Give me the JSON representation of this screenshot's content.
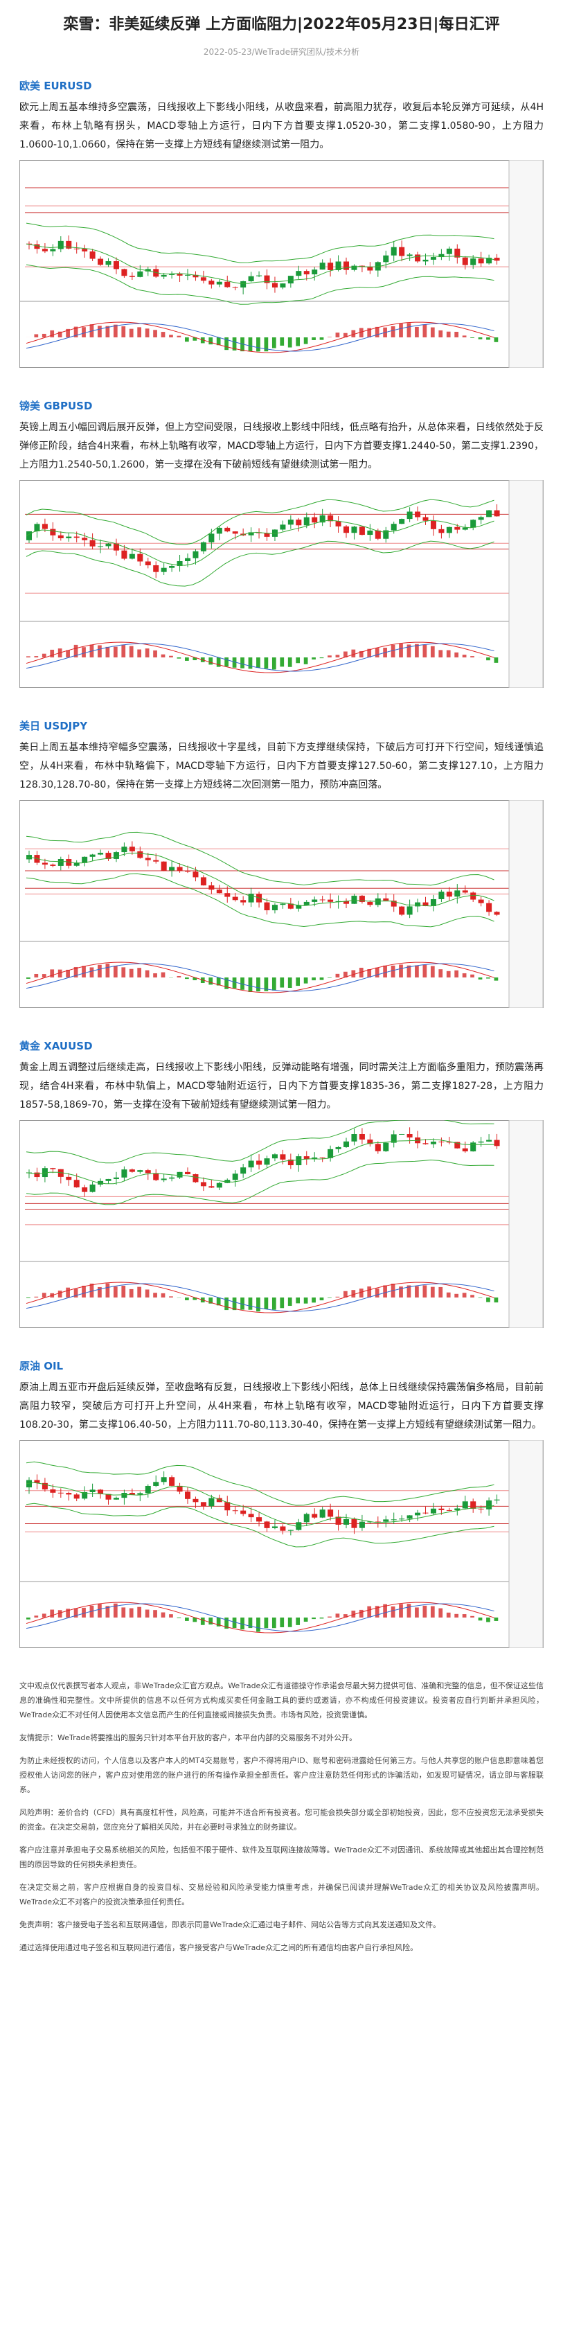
{
  "header": {
    "title": "栾雪：非美延续反弹 上方面临阻力|2022年05月23日|每日汇评",
    "meta": "2022-05-23/WeTrade研究团队/技术分析"
  },
  "sections": [
    {
      "heading": "欧美 EURUSD",
      "body": "欧元上周五基本维持多空震荡，日线报收上下影线小阳线，从收盘来看，前高阻力犹存，收复后本轮反弹方可延续，从4H来看，布林上轨略有拐头，MACD零轴上方运行，日内下方首要支撑1.0520-30，第二支撑1.0580-90，上方阻力1.0600-10,1.0660，保持在第一支撑上方短线有望继续测试第一阻力。"
    },
    {
      "heading": "镑美 GBPUSD",
      "body": "英镑上周五小幅回调后展开反弹，但上方空间受限，日线报收上影线中阳线，低点略有抬升，从总体来看，日线依然处于反弹修正阶段，结合4H来看，布林上轨略有收窄，MACD零轴上方运行，日内下方首要支撑1.2440-50，第二支撑1.2390，上方阻力1.2540-50,1.2600，第一支撑在没有下破前短线有望继续测试第一阻力。"
    },
    {
      "heading": "美日 USDJPY",
      "body": "美日上周五基本维持窄幅多空震荡，日线报收十字星线，目前下方支撑继续保持，下破后方可打开下行空间，短线谨慎追空，从4H来看，布林中轨略偏下，MACD零轴下方运行，日内下方首要支撑127.50-60，第二支撑127.10，上方阻力128.30,128.70-80，保持在第一支撑上方短线将二次回测第一阻力，预防冲高回落。"
    },
    {
      "heading": "黄金 XAUUSD",
      "body": "黄金上周五调整过后继续走高，日线报收上下影线小阳线，反弹动能略有增强，同时需关注上方面临多重阻力，预防震荡再现，结合4H来看，布林中轨偏上，MACD零轴附近运行，日内下方首要支撑1835-36，第二支撑1827-28，上方阻力1857-58,1869-70，第一支撑在没有下破前短线有望继续测试第一阻力。"
    },
    {
      "heading": "原油 OIL",
      "body": "原油上周五亚市开盘后延续反弹，至收盘略有反复，日线报收上下影线小阳线，总体上日线继续保持震荡偏多格局，目前前高阻力较窄，突破后方可打开上升空间，从4H来看，布林上轨略有收窄，MACD零轴附近运行，日内下方首要支撑108.20-30，第二支撑106.40-50，上方阻力111.70-80,113.30-40，保持在第一支撑上方短线有望继续测试第一阻力。"
    }
  ],
  "disclaimer": [
    "文中观点仅代表撰写者本人观点，非WeTrade众汇官方观点。WeTrade众汇有道德操守作承诺会尽最大努力提供可信、准确和完整的信息，但不保证这些信息的准确性和完整性。文中所提供的信息不以任何方式构成买卖任何金融工具的要约或邀请，亦不构成任何投资建议。投资者应自行判断并承担风险，WeTrade众汇不对任何人因使用本文信息而产生的任何直接或间接损失负责。市场有风险，投资需谨慎。",
    "友情提示：WeTrade将要推出的服务只针对本平台开放的客户，本平台内部的交易服务不对外公开。",
    "为防止未经授权的访问，个人信息以及客户本人的MT4交易账号，客户不得将用户ID、账号和密码泄露给任何第三方。与他人共享您的账户信息即意味着您授权他人访问您的账户，客户应对使用您的账户进行的所有操作承担全部责任。客户应注意防范任何形式的诈骗活动，如发现可疑情况，请立即与客服联系。",
    "风险声明：差价合约（CFD）具有高度杠杆性，风险高，可能并不适合所有投资者。您可能会损失部分或全部初始投资，因此，您不应投资您无法承受损失的资金。在决定交易前，您应充分了解相关风险，并在必要时寻求独立的财务建议。",
    "客户应注意并承担电子交易系统相关的风险，包括但不限于硬件、软件及互联网连接故障等。WeTrade众汇不对因通讯、系统故障或其他超出其合理控制范围的原因导致的任何损失承担责任。",
    "在决定交易之前，客户应根据自身的投资目标、交易经验和风险承受能力慎重考虑，并确保已阅读并理解WeTrade众汇的相关协议及风险披露声明。WeTrade众汇不对客户的投资决策承担任何责任。",
    "免责声明：客户接受电子签名和互联网通信，即表示同意WeTrade众汇通过电子邮件、网站公告等方式向其发送通知及文件。",
    "通过选择使用通过电子签名和互联网进行通信，客户接受客户与WeTrade众汇之间的所有通信均由客户自行承担风险。"
  ]
}
